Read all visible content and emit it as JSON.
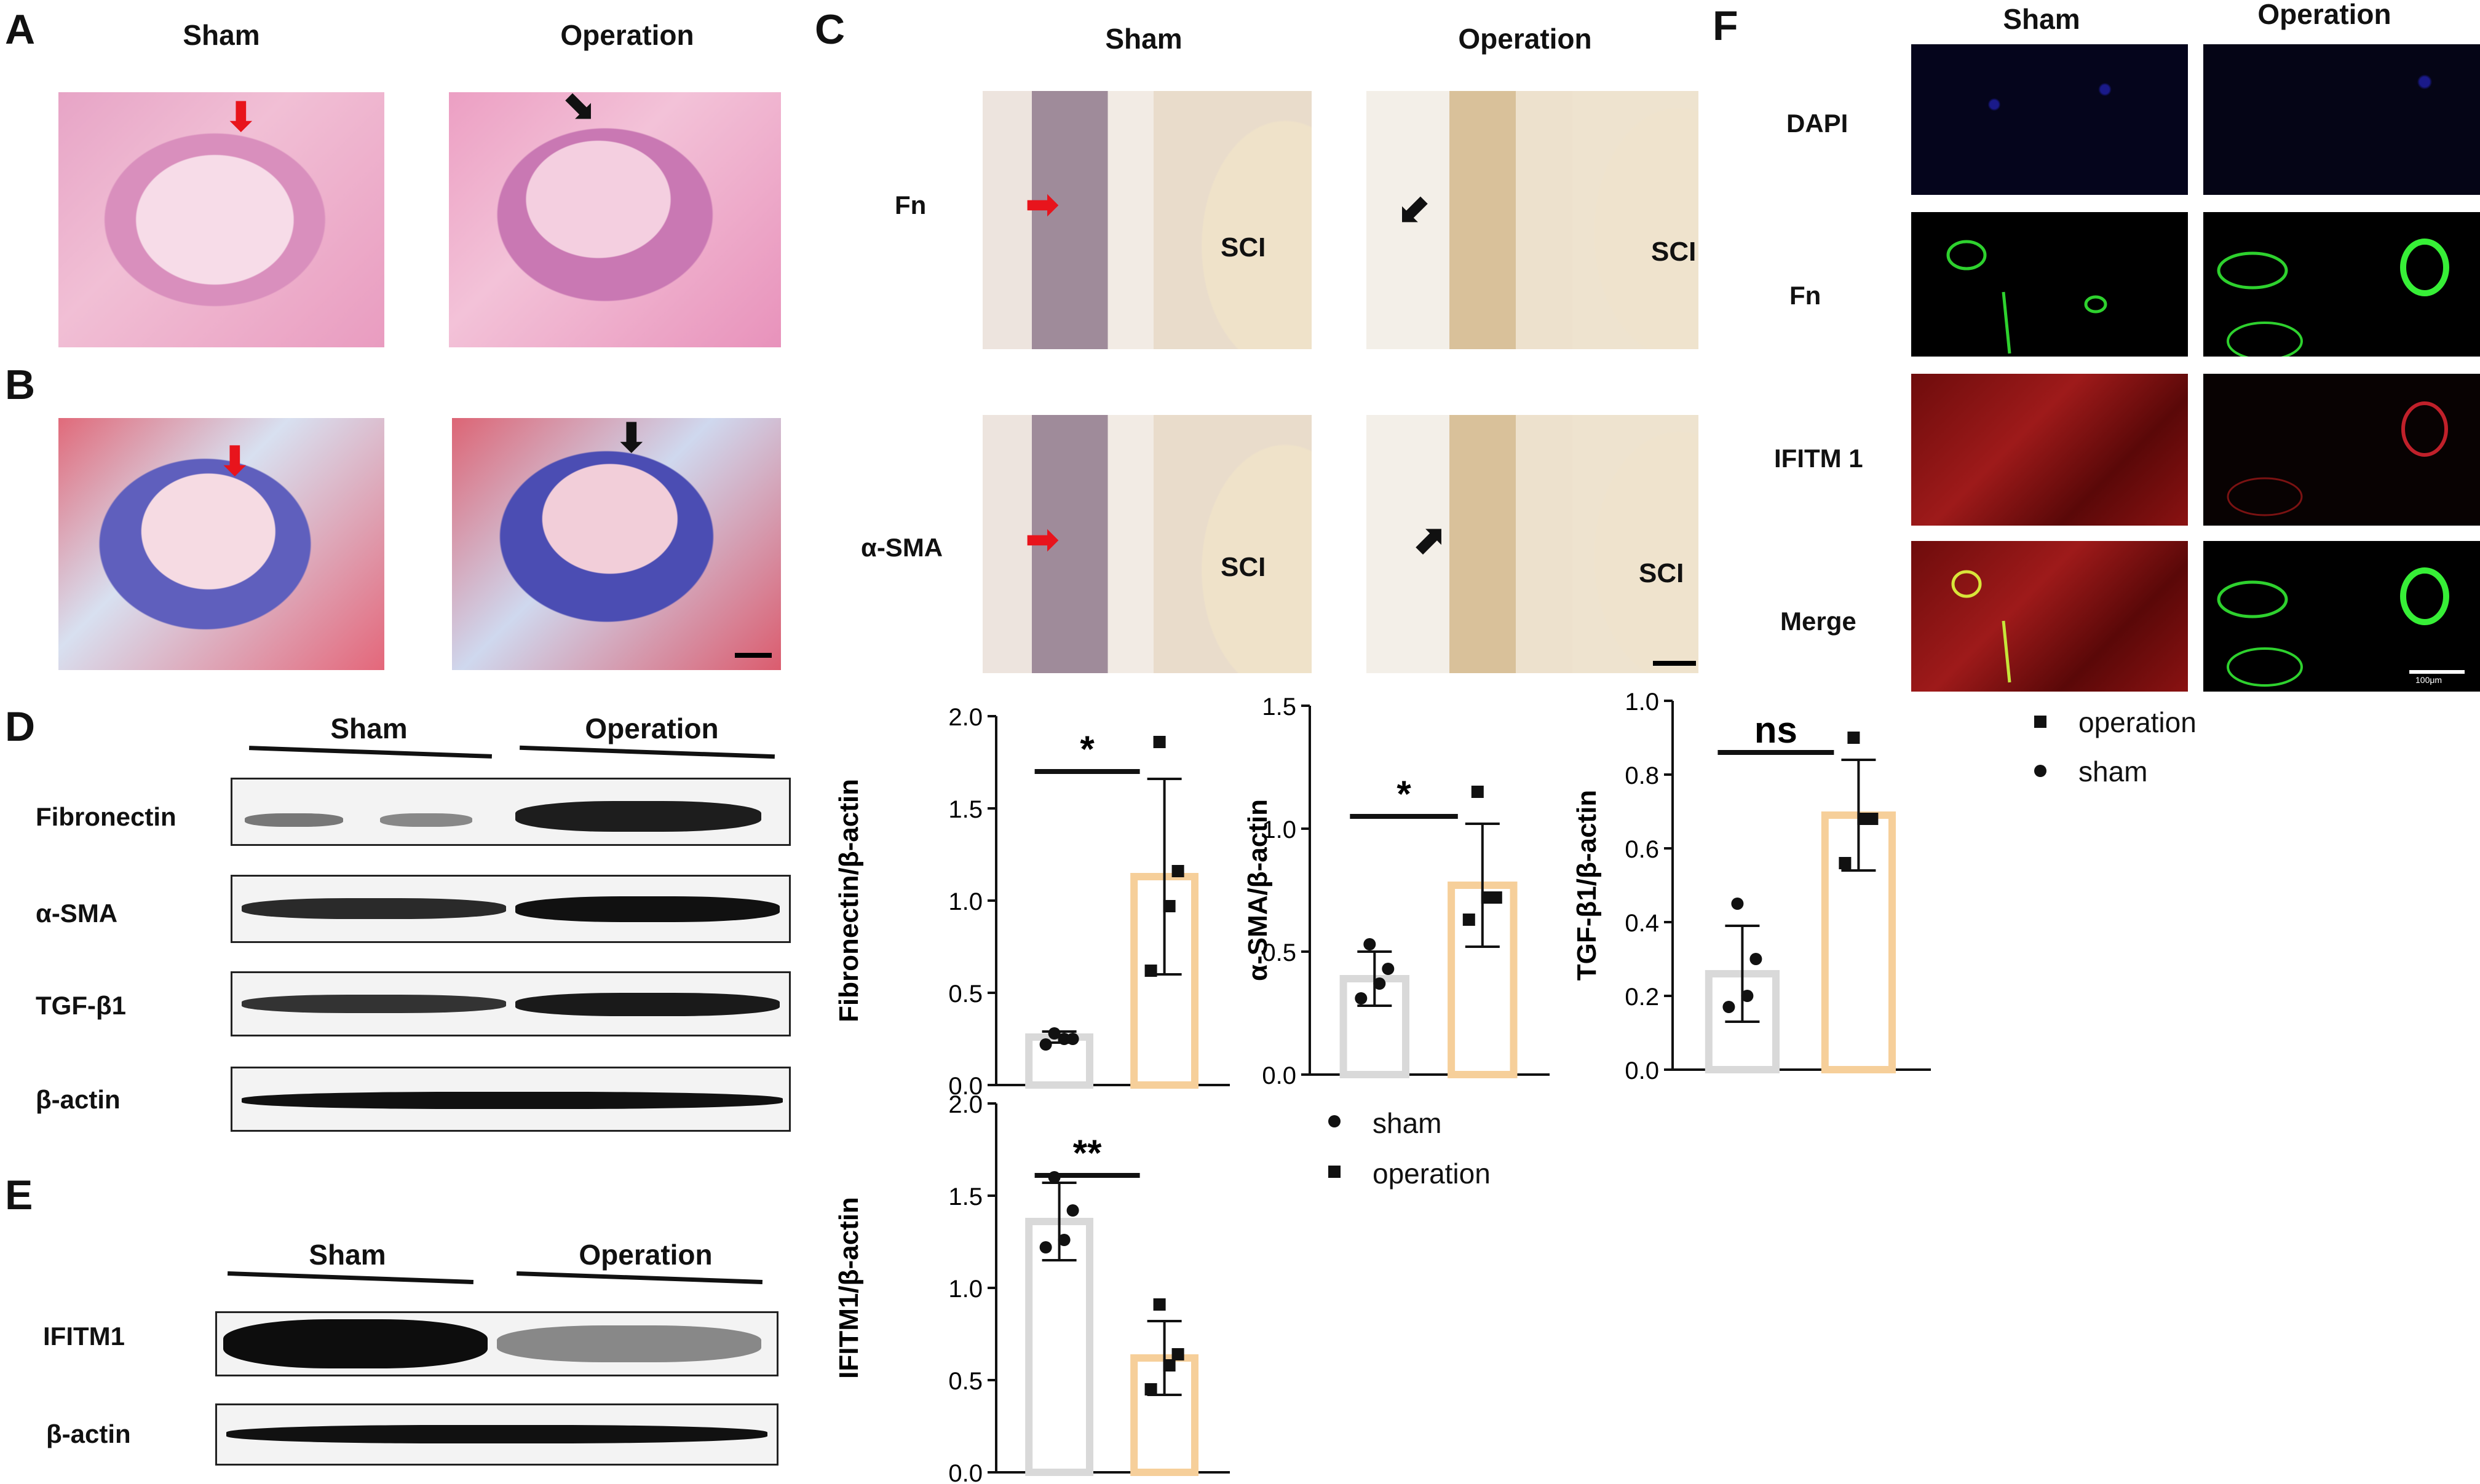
{
  "panels": {
    "A": "A",
    "B": "B",
    "C": "C",
    "D": "D",
    "E": "E",
    "F": "F"
  },
  "groups": {
    "sham": "Sham",
    "operation": "Operation"
  },
  "panelC": {
    "row_fn": "Fn",
    "row_sma": "α-SMA",
    "sci": "SCI"
  },
  "panelF": {
    "rows": [
      "DAPI",
      "Fn",
      "IFITM 1",
      "Merge"
    ],
    "scale_label": "100μm"
  },
  "panelD": {
    "rows": [
      "Fibronectin",
      "α-SMA",
      "TGF-β1",
      "β-actin"
    ]
  },
  "panelE": {
    "rows": [
      "IFITM1",
      "β-actin"
    ]
  },
  "legends": {
    "middle": [
      {
        "marker": "circle",
        "label": "sham"
      },
      {
        "marker": "square",
        "label": "operation"
      }
    ],
    "right": [
      {
        "marker": "square",
        "label": "operation"
      },
      {
        "marker": "circle",
        "label": "sham"
      }
    ]
  },
  "colors": {
    "sham_bar": "#d9d9d9",
    "operation_bar": "#f6cf9a",
    "red_arrow": "#e8141c",
    "black_arrow": "#111111"
  },
  "chart_data": [
    {
      "id": "fn",
      "type": "bar",
      "ylabel": "Fibronectin/β-actin",
      "ylim": [
        0,
        2.0
      ],
      "yticks": [
        "0.0",
        "0.5",
        "1.0",
        "1.5",
        "2.0"
      ],
      "categories": [
        "sham",
        "operation"
      ],
      "values": [
        0.26,
        1.13
      ],
      "err": [
        0.03,
        0.53
      ],
      "points": [
        [
          0.22,
          0.25,
          0.25,
          0.28
        ],
        [
          0.62,
          0.97,
          1.16,
          1.86
        ]
      ],
      "sig": "*"
    },
    {
      "id": "sma",
      "type": "bar",
      "ylabel": "α-SMA/β-actin",
      "ylim": [
        0,
        1.5
      ],
      "yticks": [
        "0.0",
        "0.5",
        "1.0",
        "1.5"
      ],
      "categories": [
        "sham",
        "operation"
      ],
      "values": [
        0.39,
        0.77
      ],
      "err": [
        0.11,
        0.25
      ],
      "points": [
        [
          0.31,
          0.37,
          0.43,
          0.53
        ],
        [
          0.63,
          0.72,
          0.72,
          1.15
        ]
      ],
      "sig": "*"
    },
    {
      "id": "tgf",
      "type": "bar",
      "ylabel": "TGF-β1/β-actin",
      "ylim": [
        0,
        1.0
      ],
      "yticks": [
        "0.0",
        "0.2",
        "0.4",
        "0.6",
        "0.8",
        "1.0"
      ],
      "categories": [
        "sham",
        "operation"
      ],
      "values": [
        0.26,
        0.69
      ],
      "err": [
        0.13,
        0.15
      ],
      "points": [
        [
          0.17,
          0.2,
          0.3,
          0.45
        ],
        [
          0.56,
          0.68,
          0.68,
          0.9
        ]
      ],
      "sig": "ns"
    },
    {
      "id": "ifitm",
      "type": "bar",
      "ylabel": "IFITM1/β-actin",
      "ylim": [
        0,
        2.0
      ],
      "yticks": [
        "0.0",
        "0.5",
        "1.0",
        "1.5",
        "2.0"
      ],
      "categories": [
        "sham",
        "operation"
      ],
      "values": [
        1.36,
        0.62
      ],
      "err": [
        0.21,
        0.2
      ],
      "points": [
        [
          1.22,
          1.26,
          1.42,
          1.6
        ],
        [
          0.45,
          0.58,
          0.64,
          0.91
        ]
      ],
      "sig": "**"
    }
  ]
}
